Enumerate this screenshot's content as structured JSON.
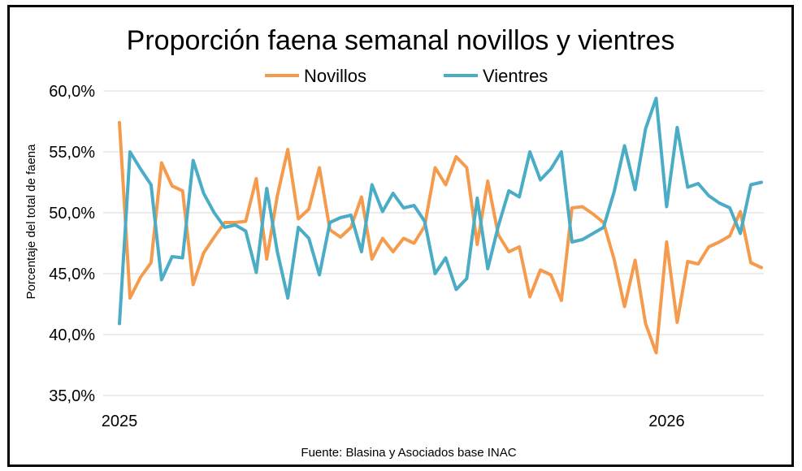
{
  "chart_data": {
    "type": "line",
    "title": "Proporción faena semanal novillos y vientres",
    "ylabel": "Porcentaje del total de faena",
    "xlabel": "",
    "source": "Fuente: Blasina y Asociados base INAC",
    "ylim": [
      35,
      60
    ],
    "yticks": [
      "35,0%",
      "40,0%",
      "45,0%",
      "50,0%",
      "55,0%",
      "60,0%"
    ],
    "ytick_values": [
      35,
      40,
      45,
      50,
      55,
      60
    ],
    "xtick_labels": [
      {
        "label": "2025",
        "week": 0
      },
      {
        "label": "2026",
        "week": 52
      }
    ],
    "grid": true,
    "legend_position": "top",
    "colors": {
      "Novillos": "#F59B4E",
      "Vientres": "#4BACC6"
    },
    "series": [
      {
        "name": "Novillos",
        "values": [
          57.4,
          43.0,
          44.7,
          45.9,
          54.1,
          52.2,
          51.8,
          44.1,
          46.7,
          48.0,
          49.2,
          49.2,
          49.3,
          52.8,
          46.2,
          51.4,
          55.2,
          49.5,
          50.3,
          53.7,
          48.6,
          48.0,
          48.8,
          51.3,
          46.2,
          47.9,
          46.8,
          47.9,
          47.5,
          48.9,
          53.7,
          52.3,
          54.6,
          53.7,
          47.4,
          52.6,
          48.2,
          46.8,
          47.2,
          43.1,
          45.3,
          44.9,
          42.8,
          50.4,
          50.5,
          49.9,
          49.2,
          46.2,
          42.3,
          46.1,
          40.9,
          38.5,
          47.6,
          41.0,
          46.0,
          45.8,
          47.2,
          47.6,
          48.1,
          50.1,
          45.9,
          45.5
        ]
      },
      {
        "name": "Vientres",
        "values": [
          40.9,
          55.0,
          53.6,
          52.3,
          44.5,
          46.4,
          46.3,
          54.3,
          51.6,
          50.0,
          48.8,
          49.0,
          48.5,
          45.1,
          52.0,
          46.8,
          43.0,
          48.8,
          47.9,
          44.9,
          49.2,
          49.6,
          49.8,
          46.8,
          52.3,
          50.1,
          51.6,
          50.4,
          50.6,
          49.3,
          45.0,
          46.3,
          43.7,
          44.6,
          51.2,
          45.4,
          48.9,
          51.8,
          51.3,
          55.0,
          52.7,
          53.6,
          55.0,
          47.6,
          47.8,
          48.3,
          48.8,
          51.7,
          55.5,
          51.9,
          56.9,
          59.4,
          50.5,
          57.0,
          52.1,
          52.4,
          51.4,
          50.8,
          50.4,
          48.3,
          52.3,
          52.5
        ]
      }
    ]
  }
}
